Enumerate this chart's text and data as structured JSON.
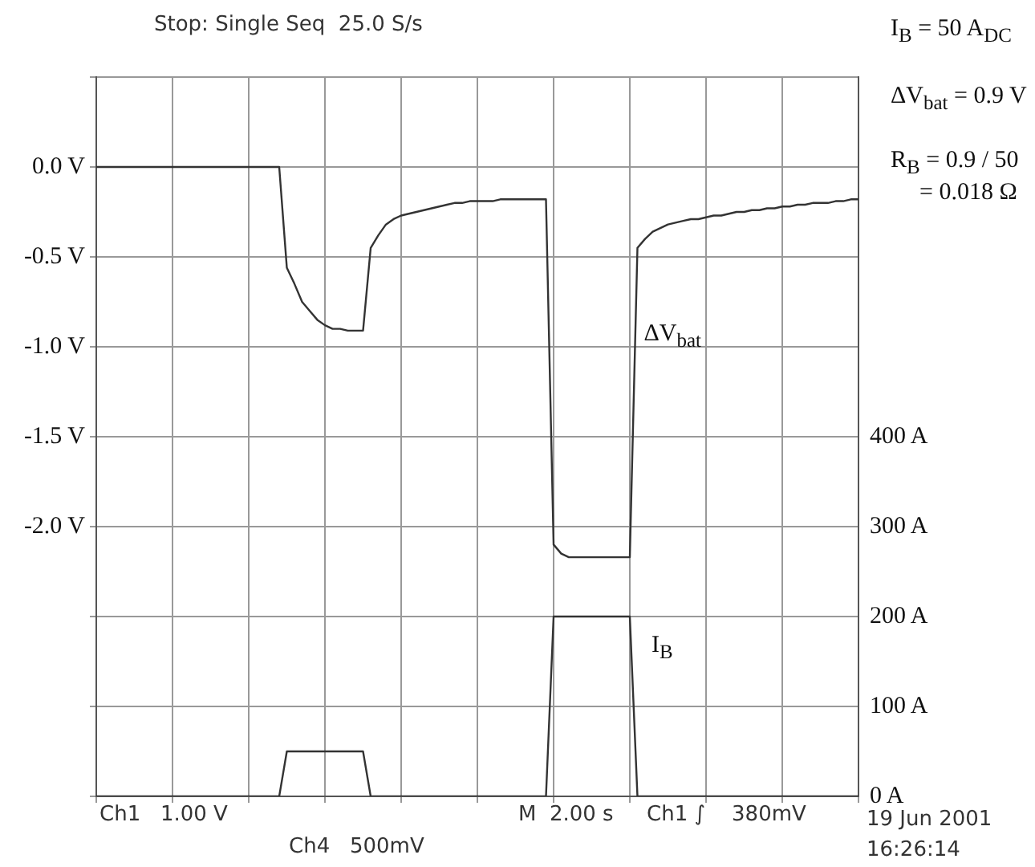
{
  "chart_data": {
    "type": "line",
    "categories": [
      null,
      null,
      null,
      null,
      null,
      null,
      null,
      null,
      null,
      null,
      null,
      null,
      null,
      null,
      null,
      null,
      null,
      null,
      null,
      null,
      null,
      null,
      null,
      null,
      null,
      null,
      null,
      null,
      null,
      null,
      null,
      null,
      null,
      null,
      null,
      null,
      null,
      null,
      null,
      null,
      null,
      null,
      null,
      null,
      null,
      null,
      null,
      null,
      null,
      null,
      null,
      null,
      null,
      null,
      null,
      null,
      null,
      null,
      null,
      null,
      null,
      null,
      null,
      null,
      null,
      null,
      null,
      null,
      null,
      null,
      null,
      null,
      null,
      null,
      null,
      null,
      null,
      null,
      null,
      null,
      null,
      null,
      null,
      null,
      null,
      null,
      null,
      null,
      null,
      null,
      null,
      null,
      null,
      null,
      null,
      null,
      null,
      null,
      null,
      null,
      null
    ],
    "ylim": [
      -3.5,
      0.5
    ],
    "yticks": [
      {
        "value": 0.5,
        "label": null
      },
      {
        "value": 0,
        "label": "0.0 V"
      },
      {
        "value": -0.5,
        "label": "-0.5 V"
      },
      {
        "value": -1,
        "label": "-1.0 V"
      },
      {
        "value": -1.5,
        "label": "-1.5 V"
      },
      {
        "value": -2,
        "label": "-2.0 V"
      },
      {
        "value": -2.5,
        "label": null
      },
      {
        "value": -3,
        "label": null
      },
      {
        "value": -3.5,
        "label": null
      }
    ],
    "y2lim": [
      0,
      800
    ],
    "y2ticks": [
      {
        "value": 0,
        "label": "0 A"
      },
      {
        "value": 100,
        "label": "100 A"
      },
      {
        "value": 200,
        "label": "200 A"
      },
      {
        "value": 300,
        "label": "300 A"
      },
      {
        "value": 400,
        "label": "400 A"
      }
    ],
    "grid": true,
    "legend": false,
    "marker": "none",
    "line_style": "solid",
    "series": [
      {
        "name": "ΔV$_{bat}$",
        "color": "#333333",
        "values": [
          0,
          0,
          0,
          0,
          0,
          0,
          0,
          0,
          0,
          0,
          0,
          0,
          0,
          0,
          0,
          0,
          0,
          0,
          0,
          0,
          0,
          0,
          0,
          0,
          0,
          -0.56,
          -0.65,
          -0.75,
          -0.8,
          -0.85,
          -0.88,
          -0.9,
          -0.9,
          -0.91,
          -0.91,
          -0.91,
          -0.45,
          -0.38,
          -0.32,
          -0.29,
          -0.27,
          -0.26,
          -0.25,
          -0.24,
          -0.23,
          -0.22,
          -0.21,
          -0.2,
          -0.2,
          -0.19,
          -0.19,
          -0.19,
          -0.19,
          -0.18,
          -0.18,
          -0.18,
          -0.18,
          -0.18,
          -0.18,
          -0.18,
          -2.1,
          -2.15,
          -2.17,
          -2.17,
          -2.17,
          -2.17,
          -2.17,
          -2.17,
          -2.17,
          -2.17,
          -2.17,
          -0.45,
          -0.4,
          -0.36,
          -0.34,
          -0.32,
          -0.31,
          -0.3,
          -0.29,
          -0.29,
          -0.28,
          -0.27,
          -0.27,
          -0.26,
          -0.25,
          -0.25,
          -0.24,
          -0.24,
          -0.23,
          -0.23,
          -0.22,
          -0.22,
          -0.21,
          -0.21,
          -0.2,
          -0.2,
          -0.2,
          -0.19,
          -0.19,
          -0.18,
          -0.18
        ]
      },
      {
        "name": "I$_{B}$",
        "color": "#333333",
        "axis": "y2",
        "values": [
          0,
          0,
          0,
          0,
          0,
          0,
          0,
          0,
          0,
          0,
          0,
          0,
          0,
          0,
          0,
          0,
          0,
          0,
          0,
          0,
          0,
          0,
          0,
          0,
          0,
          50,
          50,
          50,
          50,
          50,
          50,
          50,
          50,
          50,
          50,
          50,
          0,
          0,
          0,
          0,
          0,
          0,
          0,
          0,
          0,
          0,
          0,
          0,
          0,
          0,
          0,
          0,
          0,
          0,
          0,
          0,
          0,
          0,
          0,
          0,
          200,
          200,
          200,
          200,
          200,
          200,
          200,
          200,
          200,
          200,
          200,
          0,
          0,
          0,
          0,
          0,
          0,
          0,
          0,
          0,
          0,
          0,
          0,
          0,
          0,
          0,
          0,
          0,
          0,
          0,
          0,
          0,
          0,
          0,
          0,
          0,
          0,
          0,
          0,
          0,
          0
        ]
      }
    ],
    "annotations": [
      "Stop: Single Seq  25.0 S/s",
      "I$_{B}$ = 50 A$_{DC}$",
      "ΔV$_{bat}$ = 0.9 V",
      "R$_{B}$ = 0.9 / 50",
      "= 0.018 Ω",
      "Ch1   1.00 V",
      "M  2.00 s",
      "Ch1 ∫    380mV",
      "Ch4   500mV",
      "19 Jun 2001",
      "16:26:14"
    ]
  }
}
